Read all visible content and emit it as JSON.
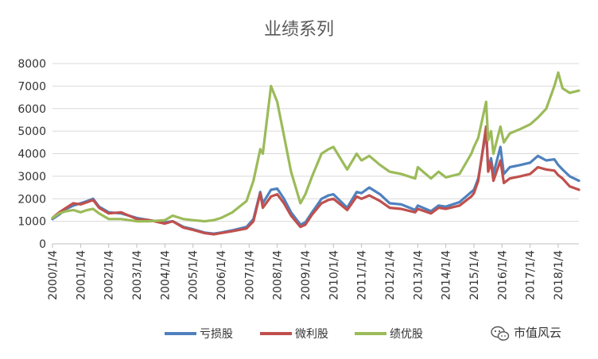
{
  "chart_data": {
    "type": "line",
    "title": "业绩系列",
    "xlabel": "",
    "ylabel": "",
    "ylim": [
      0,
      8000
    ],
    "yticks": [
      0,
      1000,
      2000,
      3000,
      4000,
      5000,
      6000,
      7000,
      8000
    ],
    "xticks": [
      "2000/1/4",
      "2001/1/4",
      "2002/1/4",
      "2003/1/4",
      "2004/1/4",
      "2005/1/4",
      "2006/1/4",
      "2007/1/4",
      "2008/1/4",
      "2009/1/4",
      "2010/1/4",
      "2011/1/4",
      "2012/1/4",
      "2013/1/4",
      "2014/1/4",
      "2015/1/4",
      "2016/1/4",
      "2017/1/4",
      "2018/1/4"
    ],
    "xlim": [
      "2000-01-04",
      "2018-09-30"
    ],
    "grid": true,
    "legend": "bottom",
    "series": [
      {
        "name": "亏损股",
        "color": "#4F81BD",
        "points": [
          [
            "2000-01-04",
            1100
          ],
          [
            "2000-04-01",
            1300
          ],
          [
            "2000-07-01",
            1550
          ],
          [
            "2000-10-01",
            1700
          ],
          [
            "2001-01-04",
            1800
          ],
          [
            "2001-04-01",
            1900
          ],
          [
            "2001-06-15",
            2000
          ],
          [
            "2001-09-01",
            1650
          ],
          [
            "2002-01-04",
            1400
          ],
          [
            "2002-06-15",
            1350
          ],
          [
            "2003-01-04",
            1150
          ],
          [
            "2003-06-15",
            1050
          ],
          [
            "2004-01-04",
            950
          ],
          [
            "2004-04-15",
            1000
          ],
          [
            "2004-09-01",
            750
          ],
          [
            "2005-01-04",
            650
          ],
          [
            "2005-06-01",
            500
          ],
          [
            "2005-10-01",
            450
          ],
          [
            "2006-01-04",
            500
          ],
          [
            "2006-06-01",
            600
          ],
          [
            "2006-12-01",
            750
          ],
          [
            "2007-03-01",
            1100
          ],
          [
            "2007-05-28",
            2300
          ],
          [
            "2007-07-01",
            1800
          ],
          [
            "2007-10-15",
            2400
          ],
          [
            "2008-01-04",
            2450
          ],
          [
            "2008-04-01",
            2000
          ],
          [
            "2008-07-01",
            1400
          ],
          [
            "2008-11-01",
            850
          ],
          [
            "2009-01-04",
            950
          ],
          [
            "2009-04-01",
            1400
          ],
          [
            "2009-08-01",
            2000
          ],
          [
            "2009-11-01",
            2150
          ],
          [
            "2010-01-04",
            2200
          ],
          [
            "2010-07-01",
            1600
          ],
          [
            "2010-11-01",
            2300
          ],
          [
            "2011-01-04",
            2250
          ],
          [
            "2011-04-15",
            2500
          ],
          [
            "2011-09-01",
            2200
          ],
          [
            "2012-01-04",
            1800
          ],
          [
            "2012-06-01",
            1750
          ],
          [
            "2012-12-01",
            1500
          ],
          [
            "2013-01-04",
            1700
          ],
          [
            "2013-06-25",
            1450
          ],
          [
            "2013-10-01",
            1700
          ],
          [
            "2014-01-04",
            1650
          ],
          [
            "2014-07-01",
            1850
          ],
          [
            "2014-12-01",
            2300
          ],
          [
            "2015-01-04",
            2400
          ],
          [
            "2015-03-01",
            2900
          ],
          [
            "2015-06-12",
            5000
          ],
          [
            "2015-07-08",
            3300
          ],
          [
            "2015-08-15",
            3800
          ],
          [
            "2015-09-15",
            3100
          ],
          [
            "2015-12-15",
            4300
          ],
          [
            "2016-01-28",
            3100
          ],
          [
            "2016-04-15",
            3400
          ],
          [
            "2016-09-01",
            3500
          ],
          [
            "2017-01-04",
            3600
          ],
          [
            "2017-04-15",
            3900
          ],
          [
            "2017-08-01",
            3700
          ],
          [
            "2017-11-15",
            3750
          ],
          [
            "2018-01-04",
            3500
          ],
          [
            "2018-03-01",
            3300
          ],
          [
            "2018-06-01",
            3000
          ],
          [
            "2018-09-30",
            2800
          ]
        ]
      },
      {
        "name": "微利股",
        "color": "#C0504D",
        "points": [
          [
            "2000-01-04",
            1150
          ],
          [
            "2000-04-01",
            1400
          ],
          [
            "2000-07-01",
            1600
          ],
          [
            "2000-10-01",
            1800
          ],
          [
            "2001-01-04",
            1750
          ],
          [
            "2001-04-01",
            1850
          ],
          [
            "2001-06-15",
            1950
          ],
          [
            "2001-09-01",
            1600
          ],
          [
            "2002-01-04",
            1350
          ],
          [
            "2002-06-15",
            1400
          ],
          [
            "2003-01-04",
            1100
          ],
          [
            "2003-06-15",
            1050
          ],
          [
            "2004-01-04",
            900
          ],
          [
            "2004-04-15",
            1000
          ],
          [
            "2004-09-01",
            720
          ],
          [
            "2005-01-04",
            620
          ],
          [
            "2005-06-01",
            480
          ],
          [
            "2005-10-01",
            420
          ],
          [
            "2006-01-04",
            480
          ],
          [
            "2006-06-01",
            560
          ],
          [
            "2006-12-01",
            680
          ],
          [
            "2007-03-01",
            1000
          ],
          [
            "2007-05-28",
            2250
          ],
          [
            "2007-07-01",
            1600
          ],
          [
            "2007-10-15",
            2100
          ],
          [
            "2008-01-04",
            2200
          ],
          [
            "2008-04-01",
            1800
          ],
          [
            "2008-07-01",
            1250
          ],
          [
            "2008-11-01",
            750
          ],
          [
            "2009-01-04",
            850
          ],
          [
            "2009-04-01",
            1300
          ],
          [
            "2009-08-01",
            1800
          ],
          [
            "2009-11-01",
            1950
          ],
          [
            "2010-01-04",
            2000
          ],
          [
            "2010-07-01",
            1500
          ],
          [
            "2010-11-01",
            2100
          ],
          [
            "2011-01-04",
            2000
          ],
          [
            "2011-04-15",
            2150
          ],
          [
            "2011-09-01",
            1900
          ],
          [
            "2012-01-04",
            1600
          ],
          [
            "2012-06-01",
            1550
          ],
          [
            "2012-12-01",
            1400
          ],
          [
            "2013-01-04",
            1550
          ],
          [
            "2013-06-25",
            1350
          ],
          [
            "2013-10-01",
            1600
          ],
          [
            "2014-01-04",
            1550
          ],
          [
            "2014-07-01",
            1700
          ],
          [
            "2014-12-01",
            2100
          ],
          [
            "2015-01-04",
            2250
          ],
          [
            "2015-03-01",
            2800
          ],
          [
            "2015-06-12",
            5200
          ],
          [
            "2015-07-08",
            3200
          ],
          [
            "2015-08-15",
            3600
          ],
          [
            "2015-09-15",
            2800
          ],
          [
            "2015-12-15",
            3700
          ],
          [
            "2016-01-28",
            2700
          ],
          [
            "2016-04-15",
            2900
          ],
          [
            "2016-09-01",
            3000
          ],
          [
            "2017-01-04",
            3100
          ],
          [
            "2017-04-15",
            3400
          ],
          [
            "2017-08-01",
            3300
          ],
          [
            "2017-11-15",
            3250
          ],
          [
            "2018-01-04",
            3050
          ],
          [
            "2018-03-01",
            2900
          ],
          [
            "2018-06-01",
            2550
          ],
          [
            "2018-09-30",
            2400
          ]
        ]
      },
      {
        "name": "绩优股",
        "color": "#9BBB59",
        "points": [
          [
            "2000-01-04",
            1150
          ],
          [
            "2000-04-01",
            1350
          ],
          [
            "2000-07-01",
            1450
          ],
          [
            "2000-10-01",
            1500
          ],
          [
            "2001-01-04",
            1400
          ],
          [
            "2001-04-01",
            1500
          ],
          [
            "2001-06-15",
            1550
          ],
          [
            "2001-09-01",
            1350
          ],
          [
            "2002-01-04",
            1100
          ],
          [
            "2002-06-15",
            1100
          ],
          [
            "2003-01-04",
            1000
          ],
          [
            "2003-06-15",
            1000
          ],
          [
            "2004-01-04",
            1050
          ],
          [
            "2004-04-15",
            1250
          ],
          [
            "2004-09-01",
            1100
          ],
          [
            "2005-01-04",
            1050
          ],
          [
            "2005-06-01",
            1000
          ],
          [
            "2005-10-01",
            1050
          ],
          [
            "2006-01-04",
            1150
          ],
          [
            "2006-06-01",
            1400
          ],
          [
            "2006-12-01",
            1900
          ],
          [
            "2007-03-01",
            2800
          ],
          [
            "2007-05-28",
            4200
          ],
          [
            "2007-07-01",
            4000
          ],
          [
            "2007-10-15",
            7000
          ],
          [
            "2008-01-04",
            6300
          ],
          [
            "2008-04-01",
            4800
          ],
          [
            "2008-07-01",
            3200
          ],
          [
            "2008-11-01",
            1800
          ],
          [
            "2009-01-04",
            2200
          ],
          [
            "2009-04-01",
            3000
          ],
          [
            "2009-08-01",
            4000
          ],
          [
            "2009-11-01",
            4200
          ],
          [
            "2010-01-04",
            4300
          ],
          [
            "2010-07-01",
            3300
          ],
          [
            "2010-11-01",
            4000
          ],
          [
            "2011-01-04",
            3700
          ],
          [
            "2011-04-15",
            3900
          ],
          [
            "2011-09-01",
            3500
          ],
          [
            "2012-01-04",
            3200
          ],
          [
            "2012-06-01",
            3100
          ],
          [
            "2012-12-01",
            2900
          ],
          [
            "2013-01-04",
            3400
          ],
          [
            "2013-06-25",
            2900
          ],
          [
            "2013-10-01",
            3200
          ],
          [
            "2014-01-04",
            2950
          ],
          [
            "2014-07-01",
            3100
          ],
          [
            "2014-12-01",
            4000
          ],
          [
            "2015-01-04",
            4300
          ],
          [
            "2015-03-01",
            4700
          ],
          [
            "2015-06-12",
            6300
          ],
          [
            "2015-07-08",
            4600
          ],
          [
            "2015-08-15",
            5000
          ],
          [
            "2015-09-15",
            4000
          ],
          [
            "2015-12-15",
            5200
          ],
          [
            "2016-01-28",
            4500
          ],
          [
            "2016-04-15",
            4900
          ],
          [
            "2016-09-01",
            5100
          ],
          [
            "2017-01-04",
            5300
          ],
          [
            "2017-04-15",
            5600
          ],
          [
            "2017-08-01",
            6000
          ],
          [
            "2017-11-15",
            7000
          ],
          [
            "2018-01-04",
            7600
          ],
          [
            "2018-03-01",
            6900
          ],
          [
            "2018-06-01",
            6700
          ],
          [
            "2018-09-30",
            6800
          ]
        ]
      }
    ]
  },
  "watermark": {
    "text": "市值风云",
    "icon": "wechat-icon"
  }
}
